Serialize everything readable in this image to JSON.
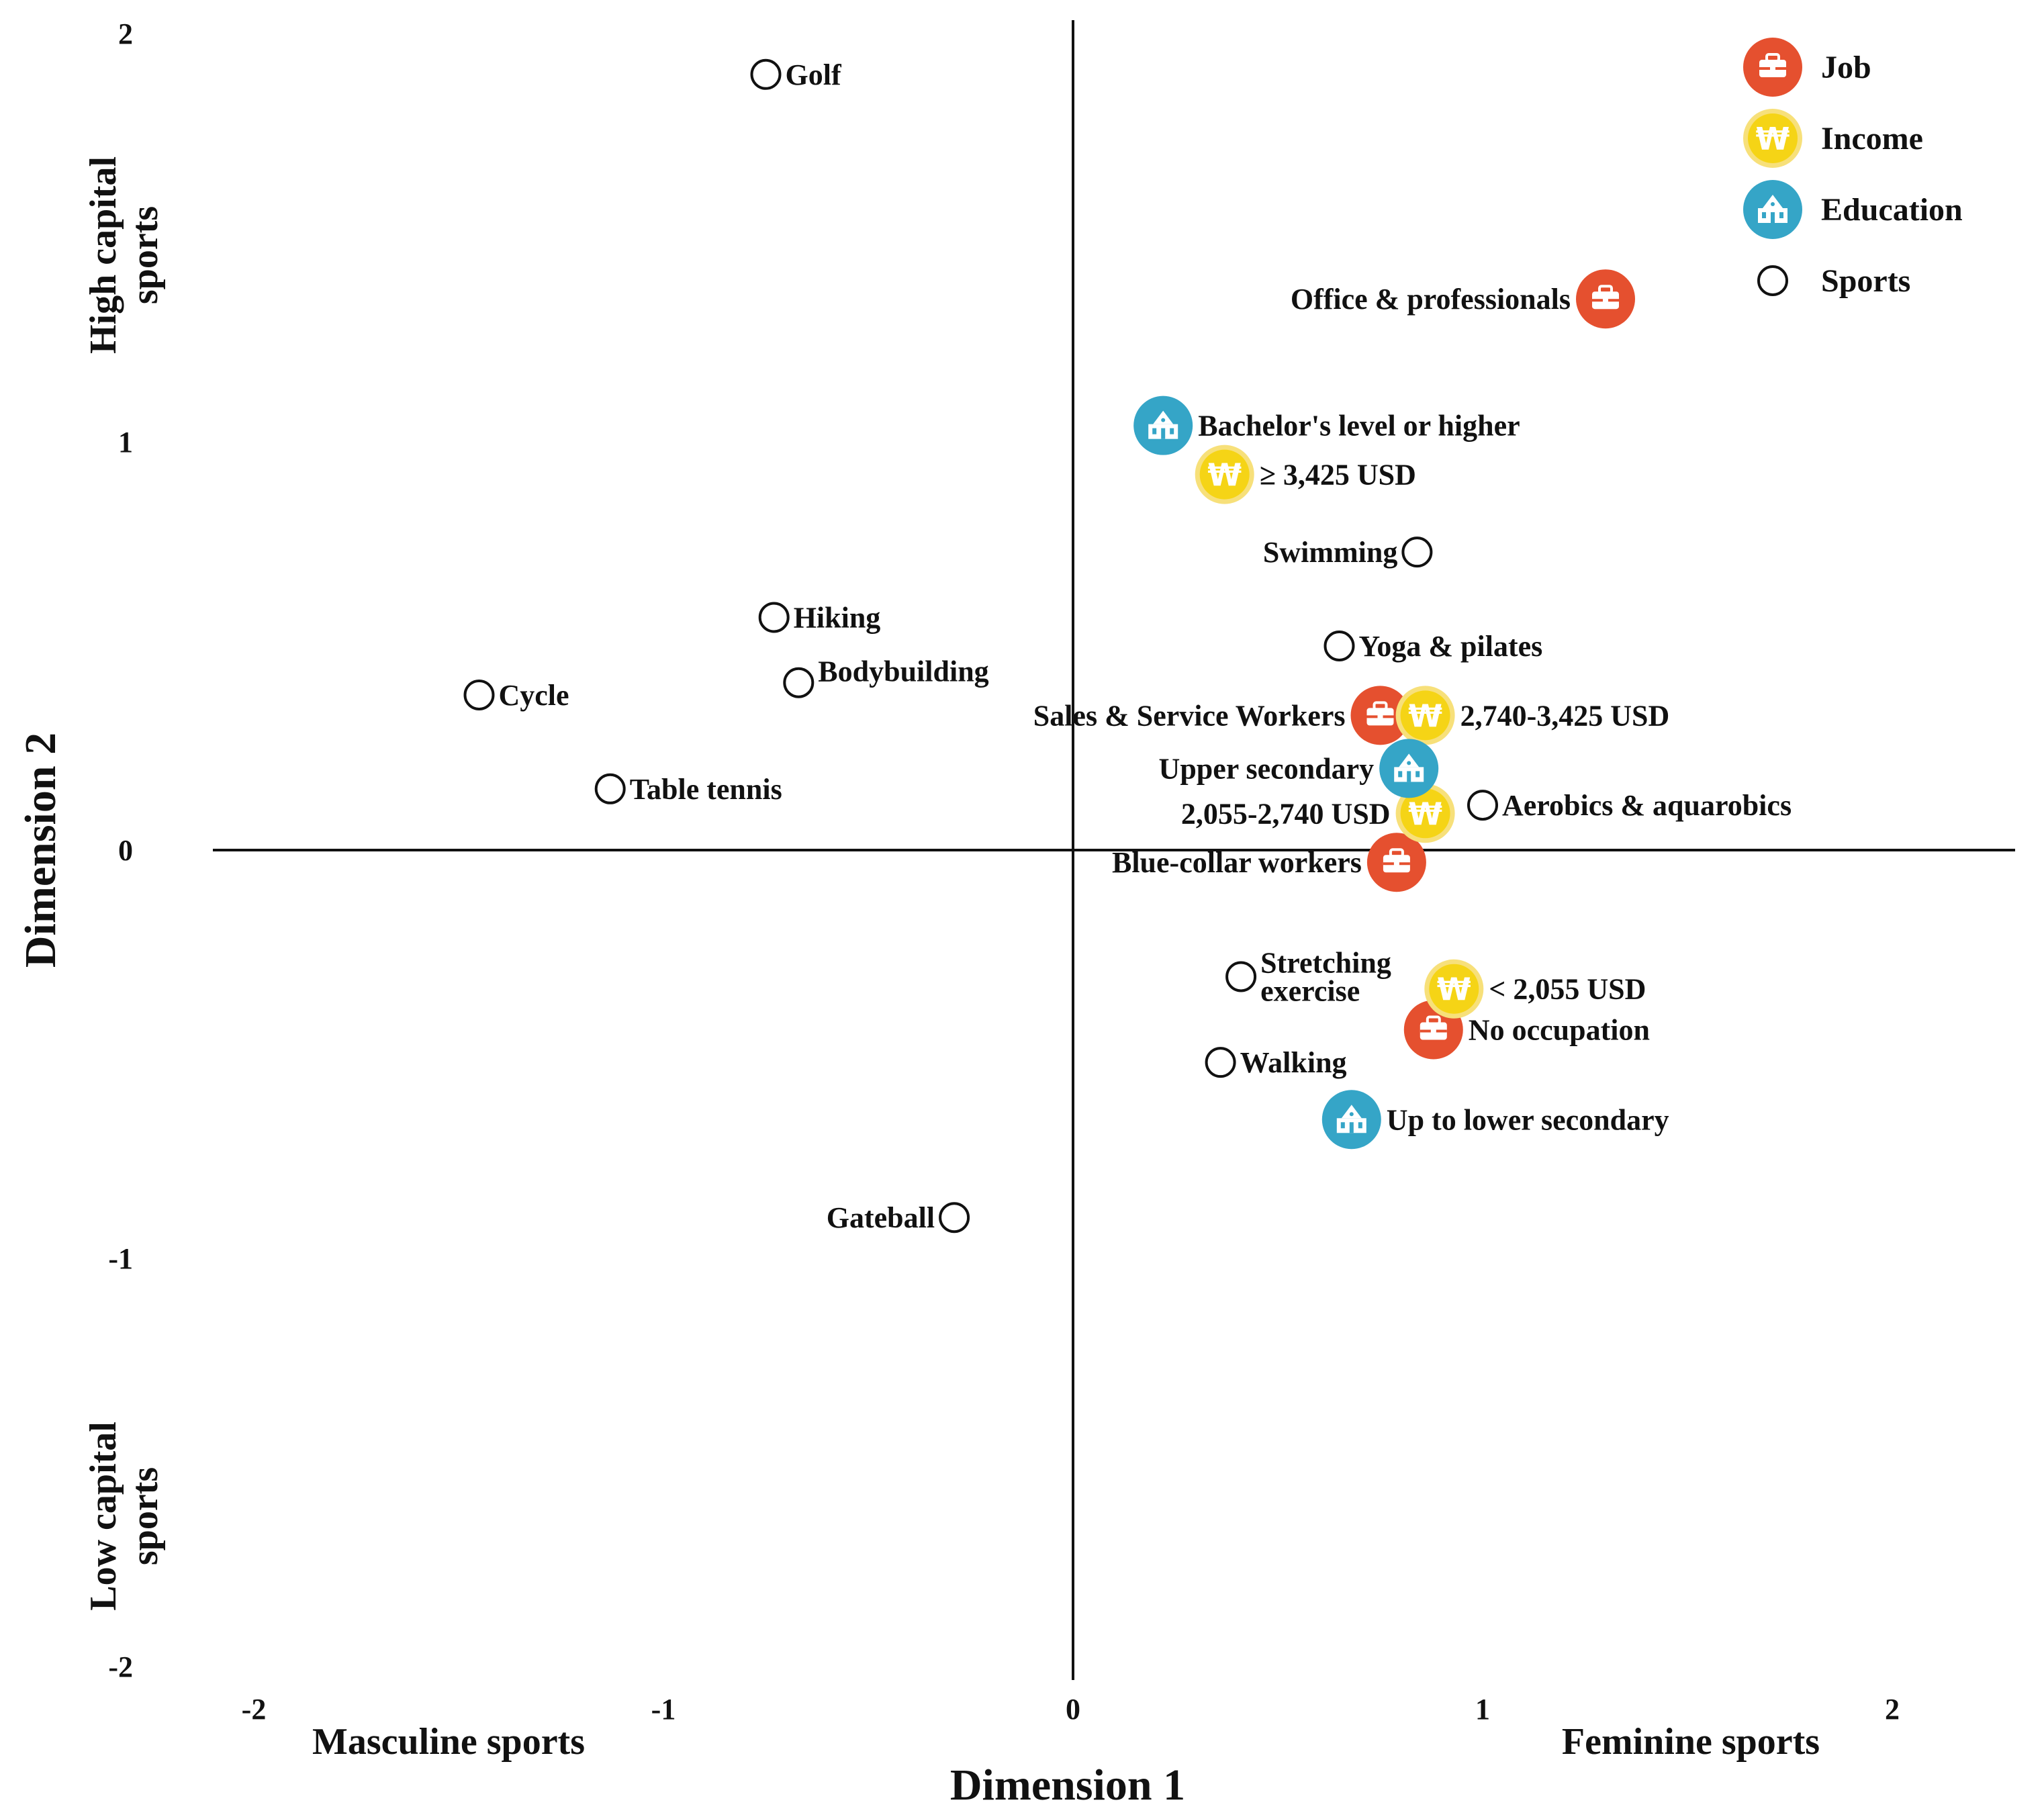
{
  "chart_data": {
    "type": "scatter",
    "title": "",
    "xlabel": "Dimension 1",
    "ylabel": "Dimension 2",
    "xlim": [
      -2.1,
      2.3
    ],
    "ylim": [
      -2,
      2
    ],
    "xticks": [
      -2,
      -1,
      0,
      1,
      2
    ],
    "yticks": [
      2,
      1,
      0,
      -1,
      -2
    ],
    "x_end_labels": {
      "left": "Masculine sports",
      "right": "Feminine sports"
    },
    "y_end_labels": {
      "top": [
        "High capital",
        "sports"
      ],
      "bottom": [
        "Low capital",
        "sports"
      ]
    },
    "colors": {
      "Job": "#e5502f",
      "Income": "#f5d416",
      "Education": "#35a5c7",
      "Sports": "#ffffff"
    },
    "legend": [
      {
        "name": "Job",
        "icon": "briefcase-icon"
      },
      {
        "name": "Income",
        "icon": "won-coin-icon"
      },
      {
        "name": "Education",
        "icon": "school-building-icon"
      },
      {
        "name": "Sports",
        "icon": "open-circle-icon"
      }
    ],
    "points": [
      {
        "label": "Golf",
        "group": "Sports",
        "x": -0.75,
        "y": 1.9,
        "anchor": "right"
      },
      {
        "label": "Hiking",
        "group": "Sports",
        "x": -0.73,
        "y": 0.57,
        "anchor": "right"
      },
      {
        "label": "Bodybuilding",
        "group": "Sports",
        "x": -0.67,
        "y": 0.41,
        "anchor": "right-up"
      },
      {
        "label": "Cycle",
        "group": "Sports",
        "x": -1.45,
        "y": 0.38,
        "anchor": "right"
      },
      {
        "label": "Table tennis",
        "group": "Sports",
        "x": -1.13,
        "y": 0.15,
        "anchor": "right"
      },
      {
        "label": "Swimming",
        "group": "Sports",
        "x": 0.84,
        "y": 0.73,
        "anchor": "left"
      },
      {
        "label": "Yoga & pilates",
        "group": "Sports",
        "x": 0.65,
        "y": 0.5,
        "anchor": "right"
      },
      {
        "label": "Aerobics & aquarobics",
        "group": "Sports",
        "x": 1.0,
        "y": 0.11,
        "anchor": "right"
      },
      {
        "label": "Stretching\nexercise",
        "group": "Sports",
        "x": 0.41,
        "y": -0.31,
        "anchor": "right"
      },
      {
        "label": "Walking",
        "group": "Sports",
        "x": 0.36,
        "y": -0.52,
        "anchor": "right"
      },
      {
        "label": "Gateball",
        "group": "Sports",
        "x": -0.29,
        "y": -0.9,
        "anchor": "left"
      },
      {
        "label": "Office & professionals",
        "group": "Job",
        "x": 1.3,
        "y": 1.35,
        "anchor": "left"
      },
      {
        "label": "Sales & Service Workers",
        "group": "Job",
        "x": 0.75,
        "y": 0.33,
        "anchor": "left"
      },
      {
        "label": "Blue-collar workers",
        "group": "Job",
        "x": 0.79,
        "y": -0.03,
        "anchor": "left"
      },
      {
        "label": "No occupation",
        "group": "Job",
        "x": 0.88,
        "y": -0.44,
        "anchor": "right"
      },
      {
        "label": "≥ 3,425 USD",
        "group": "Income",
        "x": 0.37,
        "y": 0.92,
        "anchor": "right"
      },
      {
        "label": "2,740-3,425 USD",
        "group": "Income",
        "x": 0.86,
        "y": 0.33,
        "anchor": "right"
      },
      {
        "label": "2,055-2,740 USD",
        "group": "Income",
        "x": 0.86,
        "y": 0.09,
        "anchor": "left"
      },
      {
        "label": "< 2,055 USD",
        "group": "Income",
        "x": 0.93,
        "y": -0.34,
        "anchor": "right"
      },
      {
        "label": "Bachelor's level or higher",
        "group": "Education",
        "x": 0.22,
        "y": 1.04,
        "anchor": "right"
      },
      {
        "label": "Upper secondary",
        "group": "Education",
        "x": 0.82,
        "y": 0.2,
        "anchor": "left"
      },
      {
        "label": "Up to lower secondary",
        "group": "Education",
        "x": 0.68,
        "y": -0.66,
        "anchor": "right"
      }
    ]
  }
}
